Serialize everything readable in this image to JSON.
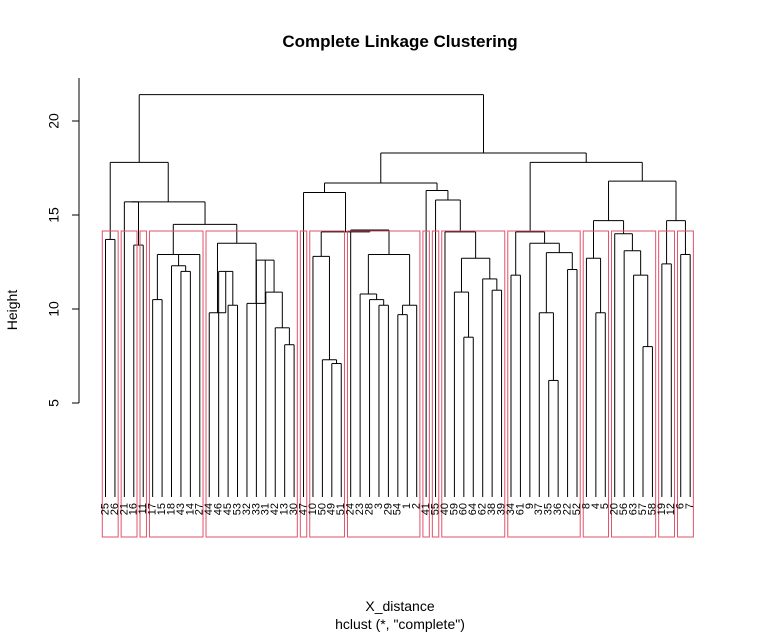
{
  "chart_data": {
    "type": "dendrogram",
    "title": "Complete Linkage Clustering",
    "xlabel": "X_distance",
    "subtitle": "hclust (*, \"complete\")",
    "ylabel": "Height",
    "y_ticks": [
      "5",
      "10",
      "15",
      "20"
    ],
    "leaves": [
      "25",
      "26",
      "21",
      "16",
      "11",
      "17",
      "15",
      "18",
      "43",
      "14",
      "27",
      "44",
      "46",
      "45",
      "53",
      "32",
      "33",
      "31",
      "42",
      "13",
      "30",
      "47",
      "10",
      "50",
      "49",
      "51",
      "24",
      "23",
      "28",
      "3",
      "29",
      "54",
      "1",
      "2",
      "41",
      "55",
      "40",
      "59",
      "60",
      "64",
      "62",
      "38",
      "39",
      "34",
      "61",
      "9",
      "37",
      "35",
      "36",
      "22",
      "52",
      "8",
      "4",
      "5",
      "20",
      "56",
      "63",
      "57",
      "58",
      "19",
      "12",
      "6",
      "7"
    ],
    "merges": [
      {
        "left": "25",
        "right": "26",
        "height": 13.7
      },
      {
        "left": "16",
        "right": "11",
        "height": 13.4
      },
      {
        "left": "21",
        "right": "16+11",
        "height": 15.7
      },
      {
        "left": "43",
        "right": "14",
        "height": 12.0
      },
      {
        "left": "18",
        "right": "43+14",
        "height": 12.3
      },
      {
        "left": "27",
        "right": "18+43+14",
        "height": 12.9
      },
      {
        "left": "15",
        "right": "17",
        "height": 10.5
      },
      {
        "left": "15+17",
        "right": "18+43+14+27",
        "height": 12.9
      },
      {
        "left": "45",
        "right": "53",
        "height": 10.2
      },
      {
        "left": "46",
        "right": "45+53",
        "height": 12.0
      },
      {
        "left": "13",
        "right": "30",
        "height": 8.1
      },
      {
        "left": "42",
        "right": "13+30",
        "height": 9.0
      },
      {
        "left": "33",
        "right": "31+42+13+30",
        "height": 10.9
      },
      {
        "left": "32",
        "right": "33+31+42+13+30",
        "height": 12.6
      },
      {
        "left": "44",
        "right": "46+45+53",
        "height": 12.0
      },
      {
        "left": "44+46+45+53",
        "right": "32+...",
        "height": 13.5
      },
      {
        "left": "17-group",
        "right": "44-group",
        "height": 14.5
      },
      {
        "left": "21-group",
        "right": "17-44-group",
        "height": 15.7
      },
      {
        "left": "25+26",
        "right": "21-17-44-group",
        "height": 17.8
      },
      {
        "left": "49",
        "right": "51",
        "height": 7.2
      },
      {
        "left": "50",
        "right": "49+51",
        "height": 7.3
      },
      {
        "left": "10",
        "right": "50+49+51",
        "height": 12.8
      },
      {
        "left": "3",
        "right": "29",
        "height": 10.5
      },
      {
        "left": "28",
        "right": "3+29",
        "height": 10.8
      },
      {
        "left": "54",
        "right": "1",
        "height": 9.7
      },
      {
        "left": "54+1",
        "right": "2",
        "height": 10.2
      },
      {
        "left": "54+1+2",
        "right": "11.2-group",
        "height": 12.3
      },
      {
        "left": "23",
        "right": "28+3+29",
        "height": 12.9
      },
      {
        "left": "24",
        "right": "23-group",
        "height": 14.2
      },
      {
        "left": "10-group",
        "right": "24-group",
        "height": 14.1
      },
      {
        "left": "47",
        "right": "10-24-group",
        "height": 16.2
      },
      {
        "left": "left-block",
        "right": "47-group",
        "height": 16.7
      },
      {
        "left": "60",
        "right": "64",
        "height": 8.5
      },
      {
        "left": "59",
        "right": "60+64",
        "height": 10.9
      },
      {
        "left": "38",
        "right": "39",
        "height": 11.0
      },
      {
        "left": "62",
        "right": "38+39",
        "height": 11.6
      },
      {
        "left": "59-group",
        "right": "62-group",
        "height": 12.7
      },
      {
        "left": "40",
        "right": "59-62-group",
        "height": 14.1
      },
      {
        "left": "55",
        "right": "40-group",
        "height": 15.8
      },
      {
        "left": "41",
        "right": "55-group",
        "height": 16.3
      },
      {
        "left": "36",
        "right": "35",
        "height": 6.2
      },
      {
        "left": "37",
        "right": "36+35",
        "height": 9.8
      },
      {
        "left": "22",
        "right": "52",
        "height": 12.1
      },
      {
        "left": "37-group",
        "right": "22+52",
        "height": 13.0
      },
      {
        "left": "34",
        "right": "61",
        "height": 11.8
      },
      {
        "left": "9",
        "right": "37-22-group",
        "height": 13.5
      },
      {
        "left": "34+61",
        "right": "9-group",
        "height": 14.1
      },
      {
        "left": "4",
        "right": "5",
        "height": 9.8
      },
      {
        "left": "8",
        "right": "4+5",
        "height": 12.7
      },
      {
        "left": "57",
        "right": "58",
        "height": 8.0
      },
      {
        "left": "63",
        "right": "57+58",
        "height": 11.8
      },
      {
        "left": "56",
        "right": "63-group",
        "height": 13.1
      },
      {
        "left": "20",
        "right": "56-group",
        "height": 14.0
      },
      {
        "left": "8-group",
        "right": "20-group",
        "height": 14.7
      },
      {
        "left": "19",
        "right": "12",
        "height": 12.4
      },
      {
        "left": "6",
        "right": "7",
        "height": 12.9
      },
      {
        "left": "19+12",
        "right": "6+7",
        "height": 14.7
      },
      {
        "left": "8-20-group",
        "right": "19-12-6-7",
        "height": 16.8
      },
      {
        "left": "34-group",
        "right": "8-20-19-group",
        "height": 17.8
      },
      {
        "left": "41-group",
        "right": "34-group",
        "height": 18.3
      },
      {
        "left": "left-root",
        "right": "right-root",
        "height": 21.4
      }
    ],
    "ylim": [
      0,
      22
    ],
    "cluster_boxes": 16,
    "cluster_box_color": "#DF536B",
    "line_color": "#000000",
    "grid": false
  }
}
